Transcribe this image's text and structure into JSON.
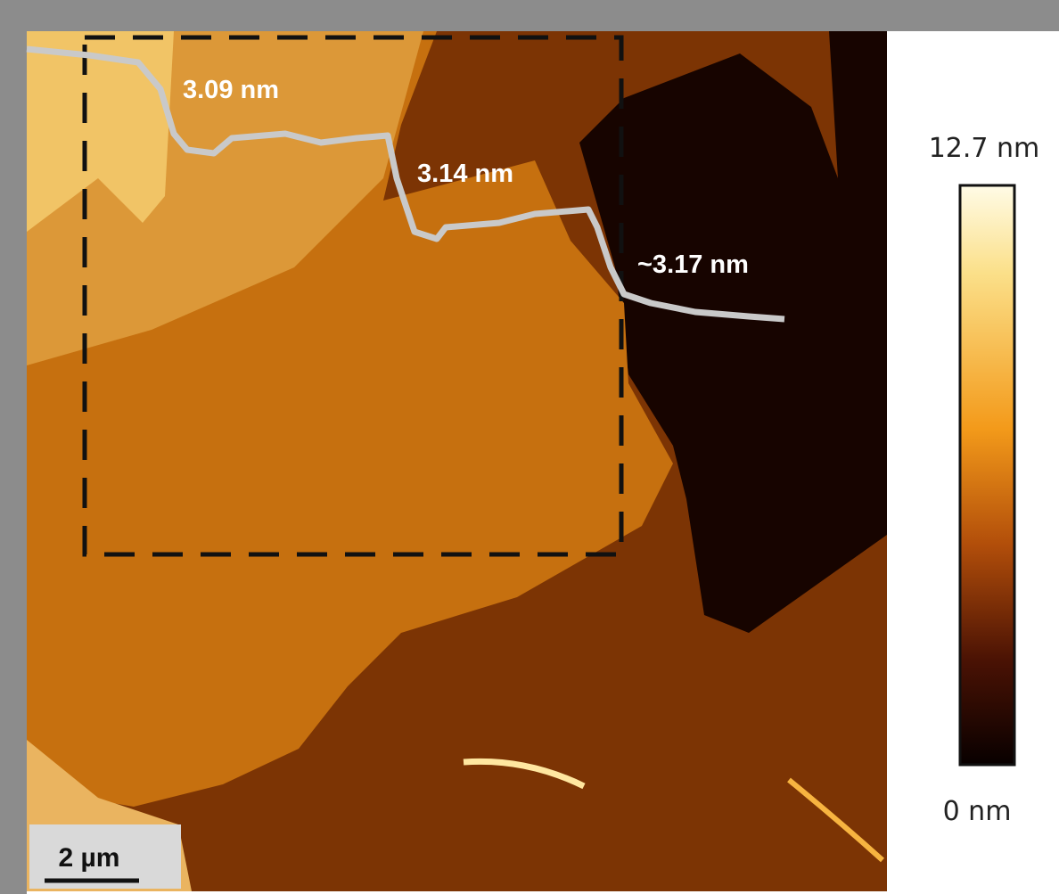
{
  "image": {
    "step_labels": [
      "3.09 nm",
      "3.14 nm",
      "~3.17 nm"
    ],
    "scale_bar": "2 µm"
  },
  "colorbar": {
    "max_label": "12.7 nm",
    "min_label": "0 nm"
  }
}
